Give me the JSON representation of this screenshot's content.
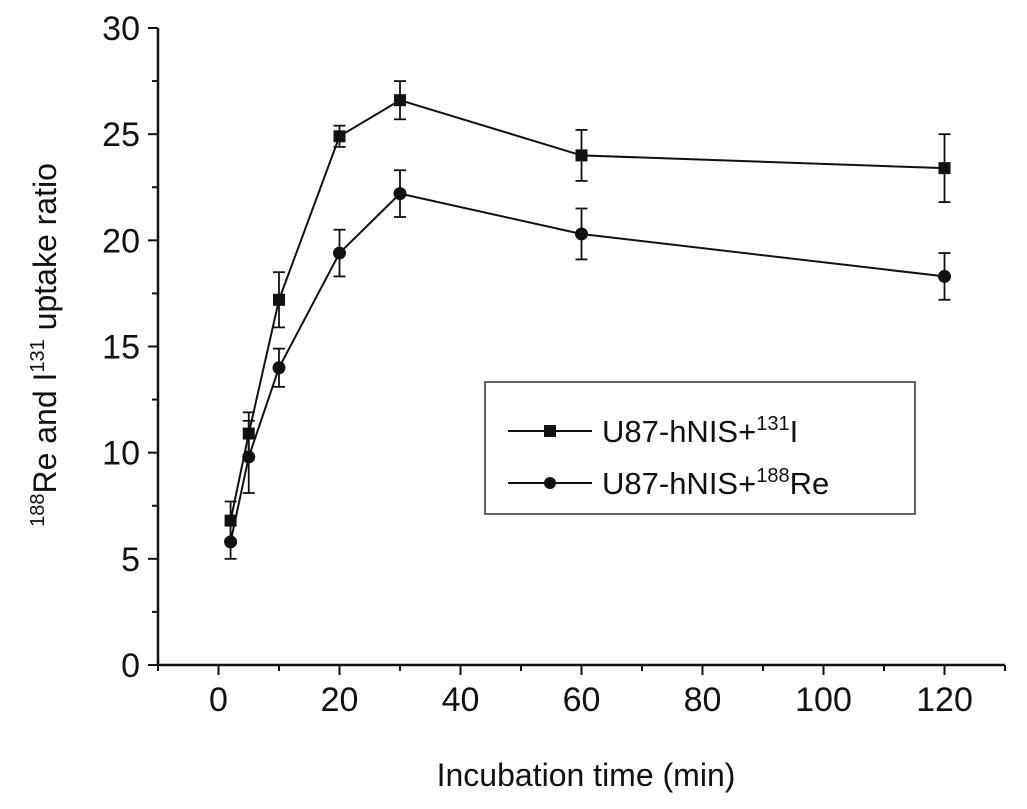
{
  "chart_data": {
    "type": "line",
    "title": "",
    "xlabel": "Incubation time (min)",
    "ylabel": {
      "sup1": "188",
      "part1": "Re and I",
      "sup2": "131",
      "part2": " uptake ratio"
    },
    "xlim": [
      -10,
      130
    ],
    "ylim": [
      0,
      30
    ],
    "xticks": [
      0,
      20,
      40,
      60,
      80,
      100,
      120
    ],
    "yticks": [
      0,
      5,
      10,
      15,
      20,
      25,
      30
    ],
    "grid": false,
    "legend_position": "center-right",
    "x": [
      2,
      5,
      10,
      20,
      30,
      60,
      120
    ],
    "series": [
      {
        "name_parts": {
          "base": "U87-hNIS+",
          "sup": "131",
          "suffix": "I"
        },
        "marker": "square",
        "color": "#111111",
        "values": [
          6.8,
          10.9,
          17.2,
          24.9,
          26.6,
          24.0,
          23.4
        ],
        "errors": [
          0.9,
          1.0,
          1.3,
          0.5,
          0.9,
          1.2,
          1.6
        ]
      },
      {
        "name_parts": {
          "base": "U87-hNIS+",
          "sup": "188",
          "suffix": "Re"
        },
        "marker": "circle",
        "color": "#111111",
        "values": [
          5.8,
          9.8,
          14.0,
          19.4,
          22.2,
          20.3,
          18.3
        ],
        "errors": [
          0.8,
          1.7,
          0.9,
          1.1,
          1.1,
          1.2,
          1.1
        ]
      }
    ]
  }
}
